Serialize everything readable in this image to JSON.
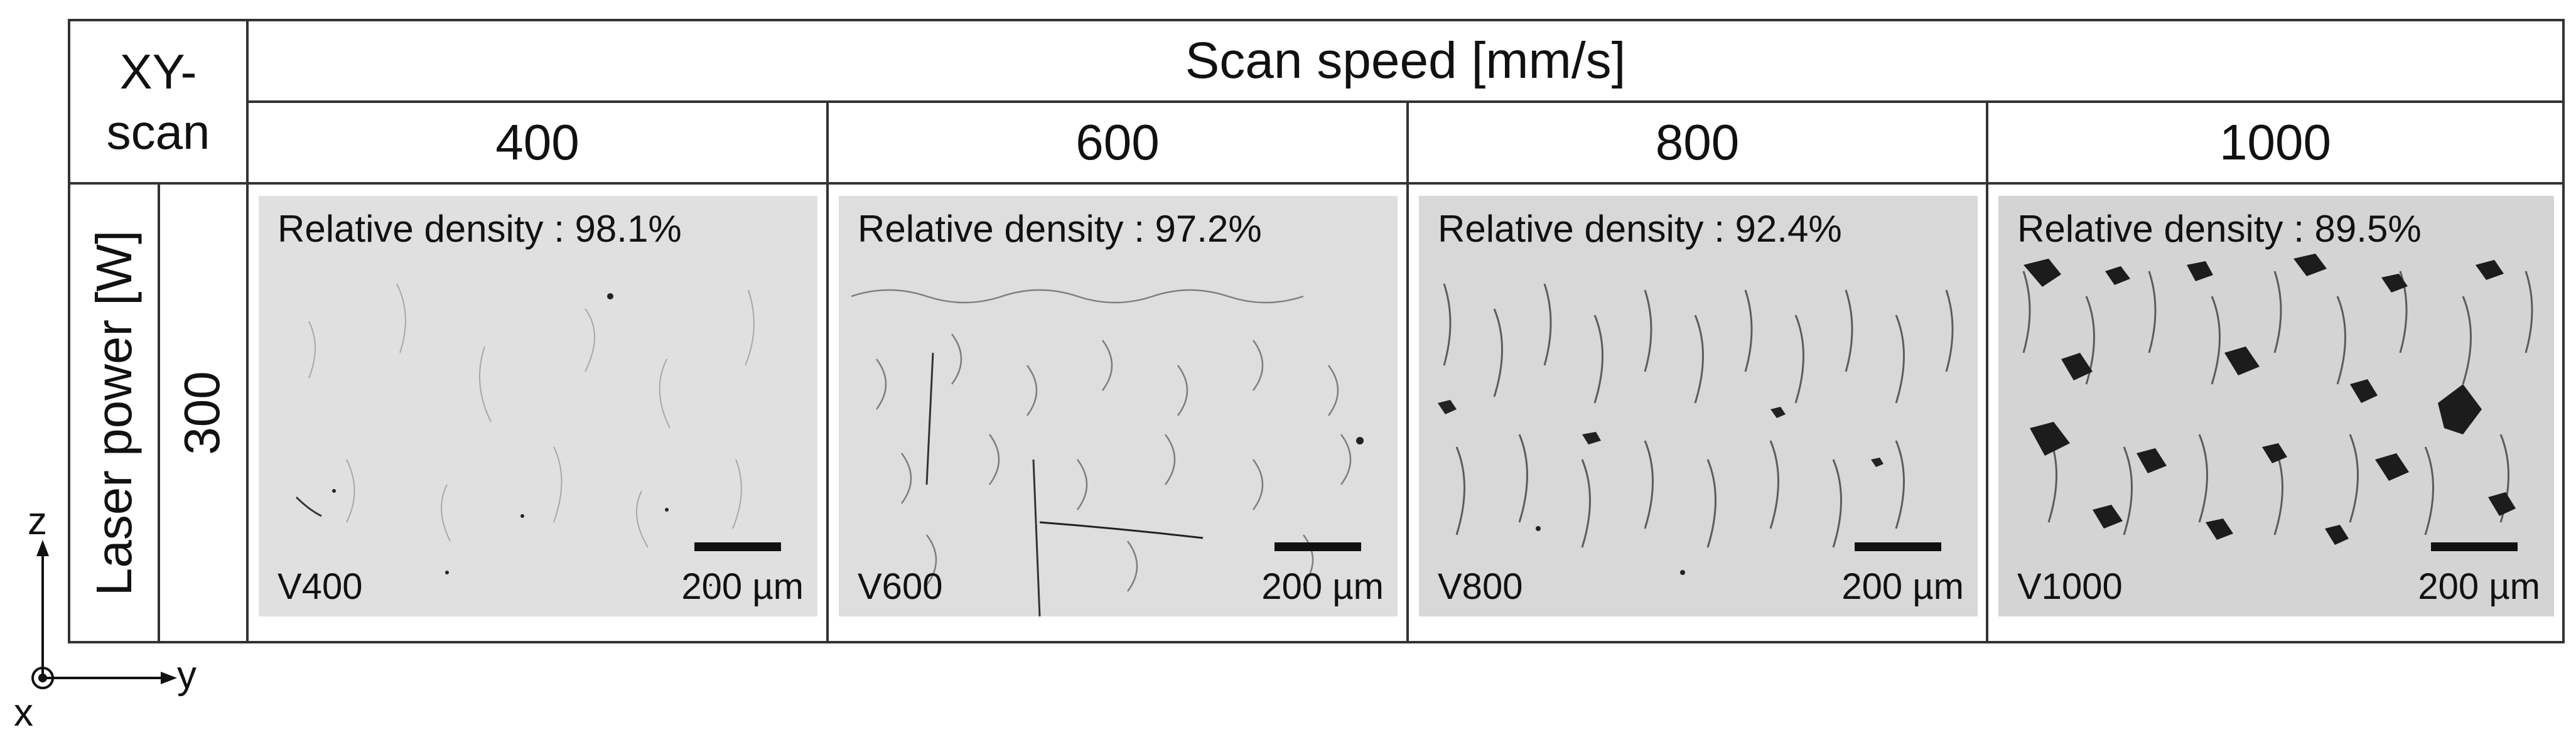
{
  "table": {
    "corner_line1": "XY-",
    "corner_line2": "scan",
    "speed_header": "Scan speed [mm/s]",
    "power_header": "Laser power [W]",
    "power_value": "300",
    "columns": [
      {
        "speed": "400",
        "density": "Relative density : 98.1%",
        "label": "V400",
        "scale": "200 µm"
      },
      {
        "speed": "600",
        "density": "Relative density : 97.2%",
        "label": "V600",
        "scale": "200 µm"
      },
      {
        "speed": "800",
        "density": "Relative density : 92.4%",
        "label": "V800",
        "scale": "200 µm"
      },
      {
        "speed": "1000",
        "density": "Relative density : 89.5%",
        "label": "V1000",
        "scale": "200 µm"
      }
    ]
  },
  "axes": {
    "z": "z",
    "y": "y",
    "x": "x"
  }
}
